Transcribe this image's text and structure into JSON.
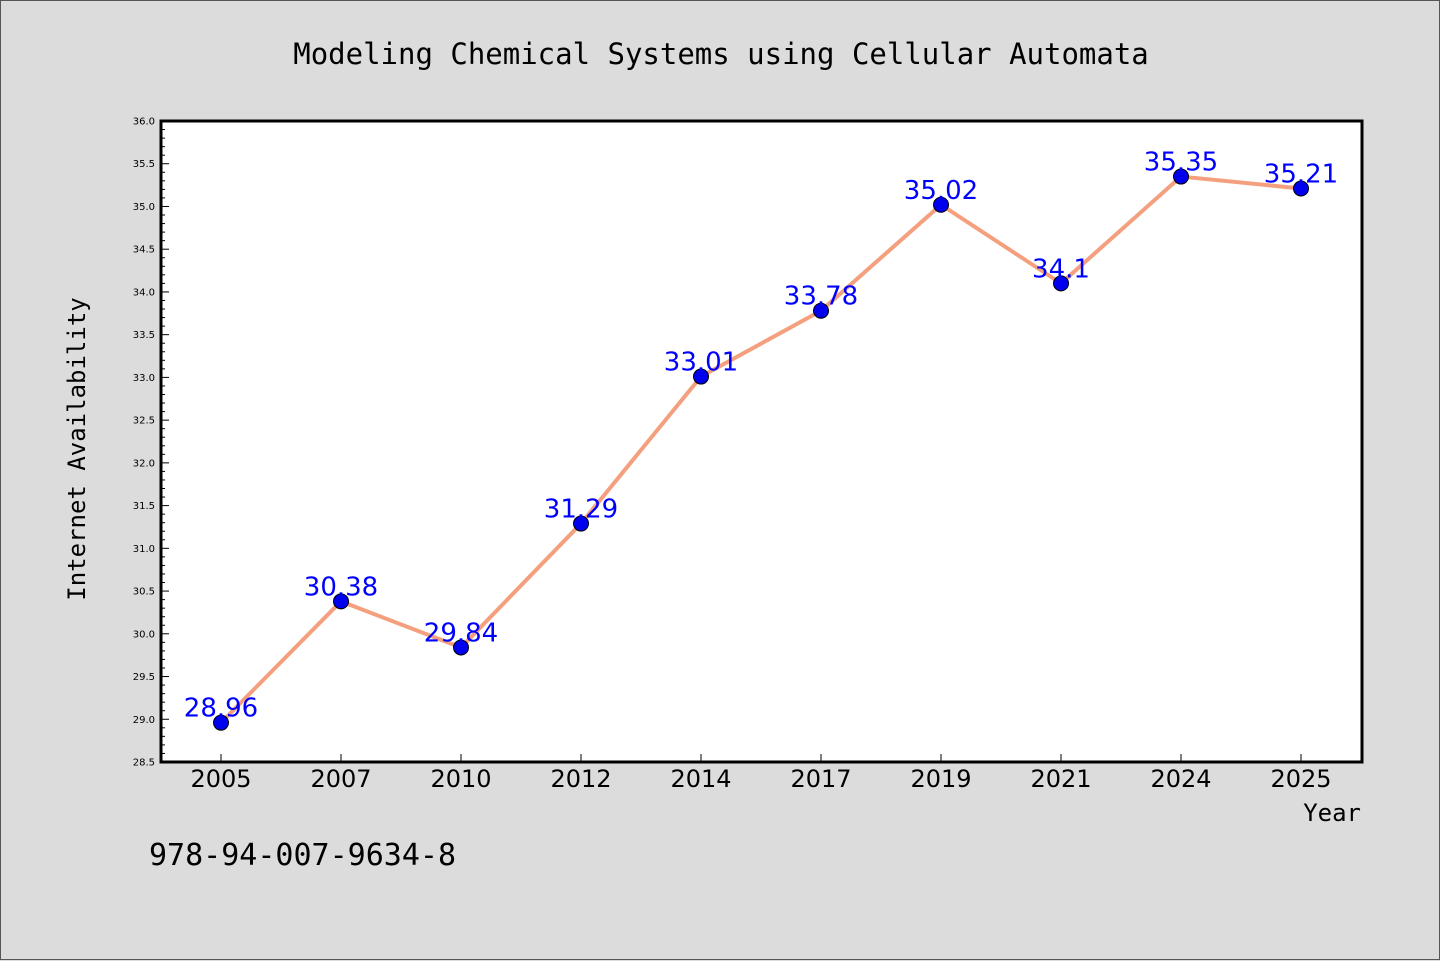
{
  "chart_data": {
    "type": "line",
    "title": "Modeling Chemical Systems using Cellular Automata",
    "xlabel": "Year",
    "ylabel": "Internet Availability",
    "categories": [
      "2005",
      "2007",
      "2010",
      "2012",
      "2014",
      "2017",
      "2019",
      "2021",
      "2024",
      "2025"
    ],
    "series": [
      {
        "values": [
          28.96,
          30.38,
          29.84,
          31.29,
          33.01,
          33.78,
          35.02,
          34.1,
          35.35,
          35.21
        ],
        "data_labels": [
          "28.96",
          "30.38",
          "29.84",
          "31.29",
          "33.01",
          "33.78",
          "35.02",
          "34.1",
          "35.35",
          "35.21"
        ],
        "line_color": "#f4a07e",
        "marker_color": "#0000ee",
        "label_color": "#0000ff"
      }
    ],
    "ylim": [
      28.5,
      36.0
    ],
    "yticks": [
      "28.5",
      "29.0",
      "29.5",
      "30.0",
      "30.5",
      "31.0",
      "31.5",
      "32.0",
      "32.5",
      "33.0",
      "33.5",
      "34.0",
      "34.5",
      "35.0",
      "35.5",
      "36.0"
    ],
    "grid": false,
    "legend": "none",
    "annotation": "978-94-007-9634-8",
    "background_color": "#dcdcdc",
    "plot_background_color": "#ffffff"
  }
}
